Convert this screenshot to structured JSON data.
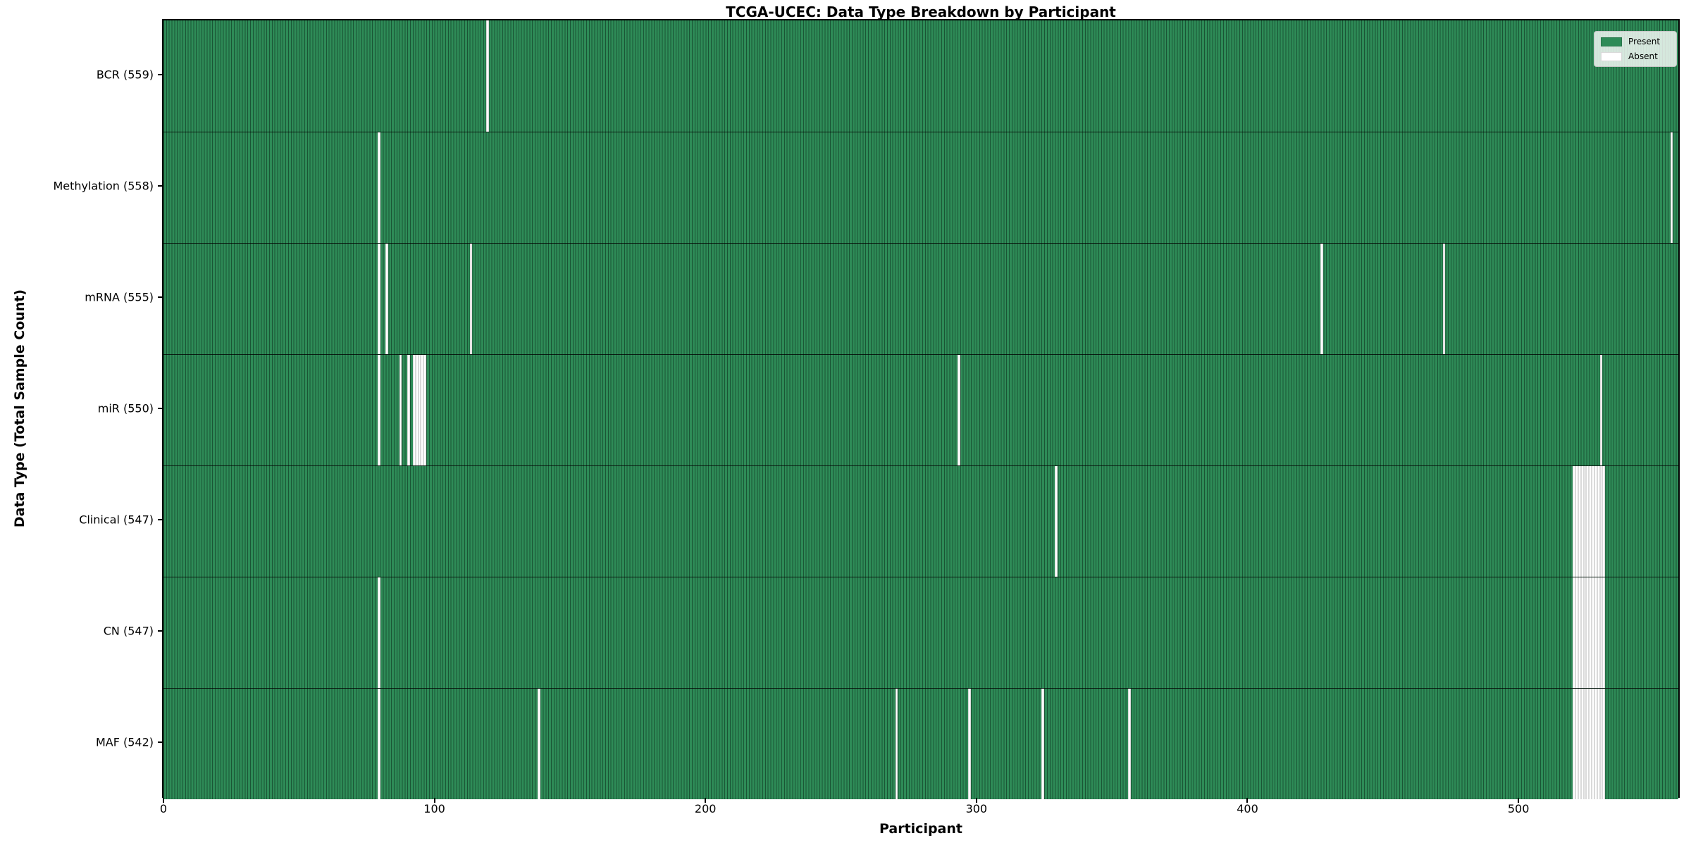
{
  "chart_data": {
    "type": "heatmap",
    "title": "TCGA-UCEC: Data Type Breakdown by Participant",
    "xlabel": "Participant",
    "ylabel": "Data Type (Total Sample Count)",
    "n_participants": 560,
    "xlim": [
      -0.5,
      559.5
    ],
    "x_ticks": [
      0,
      100,
      200,
      300,
      400,
      500
    ],
    "grid": false,
    "legend_position": "upper right",
    "legend": [
      {
        "label": "Present",
        "color": "#2e8b57"
      },
      {
        "label": "Absent",
        "color": "#ffffff"
      }
    ],
    "rows": [
      {
        "label": "BCR (559)",
        "data_type": "BCR",
        "present_count": 559,
        "absent_participants": [
          119
        ]
      },
      {
        "label": "Methylation (558)",
        "data_type": "Methylation",
        "present_count": 558,
        "absent_participants": [
          79,
          556
        ]
      },
      {
        "label": "mRNA (555)",
        "data_type": "mRNA",
        "present_count": 555,
        "absent_participants": [
          79,
          82,
          113,
          427,
          472
        ]
      },
      {
        "label": "miR (550)",
        "data_type": "miR",
        "present_count": 550,
        "absent_participants": [
          79,
          87,
          90,
          92,
          93,
          94,
          95,
          96,
          293,
          530
        ]
      },
      {
        "label": "Clinical (547)",
        "data_type": "Clinical",
        "present_count": 547,
        "absent_participants": [
          329,
          520,
          521,
          522,
          523,
          524,
          525,
          526,
          527,
          528,
          529,
          530,
          531
        ]
      },
      {
        "label": "CN (547)",
        "data_type": "CN",
        "present_count": 547,
        "absent_participants": [
          79,
          520,
          521,
          522,
          523,
          524,
          525,
          526,
          527,
          528,
          529,
          530,
          531
        ]
      },
      {
        "label": "MAF (542)",
        "data_type": "MAF",
        "present_count": 542,
        "absent_participants": [
          79,
          138,
          270,
          297,
          324,
          356,
          520,
          521,
          522,
          523,
          524,
          525,
          526,
          527,
          528,
          529,
          530,
          531
        ]
      }
    ]
  }
}
